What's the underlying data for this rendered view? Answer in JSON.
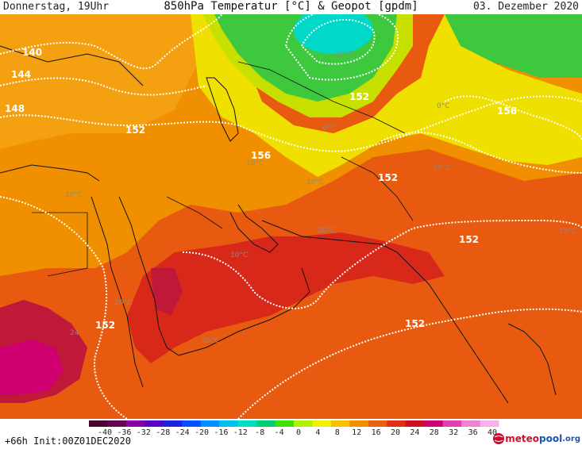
{
  "header": {
    "left": "Donnerstag, 19Uhr",
    "title": "850hPa Temperatur [°C] & Geopot [gpdm]",
    "right": "03. Dezember 2020"
  },
  "footer": {
    "lead": "+66h  Init:00Z01DEC2020",
    "logo_meteo": "meteo",
    "logo_pool": "pool",
    "logo_org": ".org"
  },
  "colorbar": {
    "ticks": [
      "-40",
      "-36",
      "-32",
      "-28",
      "-24",
      "-20",
      "-16",
      "-12",
      "-8",
      "-4",
      "0",
      "4",
      "8",
      "12",
      "16",
      "20",
      "24",
      "28",
      "32",
      "36",
      "40"
    ],
    "colors": [
      "#4b0030",
      "#6a0050",
      "#8a00a0",
      "#5a00c8",
      "#2020e0",
      "#0050ff",
      "#0090ff",
      "#00c0f0",
      "#00e0c0",
      "#00d070",
      "#40e000",
      "#b0f000",
      "#f0f000",
      "#f8c000",
      "#f09000",
      "#e86010",
      "#e03010",
      "#d01020",
      "#d00070",
      "#e040b0",
      "#f080d0",
      "#f8b0e8"
    ]
  },
  "map": {
    "geopot_labels": [
      "140",
      "144",
      "148",
      "152",
      "152",
      "156",
      "152",
      "156",
      "152",
      "152",
      "152",
      "152"
    ],
    "temp_labels": [
      "-10°C",
      "0°C",
      "0°C",
      "10°C",
      "10°C",
      "10°C",
      "10°C",
      "20°C",
      "10°C",
      "20°C",
      "20°C",
      "10°C",
      "24"
    ],
    "colors": {
      "green": "#3ec83e",
      "cyan": "#00d8c8",
      "yellow_green": "#c8e000",
      "yellow": "#f0e000",
      "orange": "#f09000",
      "red_orange": "#e85a10",
      "red": "#d8281a",
      "crimson": "#c01838",
      "magenta": "#d00070"
    }
  }
}
